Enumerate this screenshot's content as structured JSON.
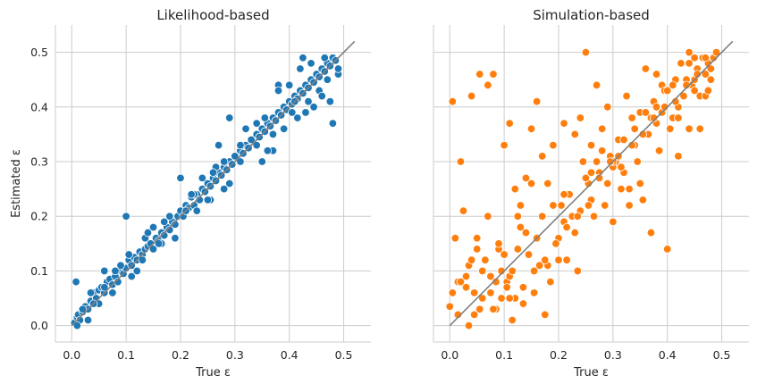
{
  "chart_data": [
    {
      "type": "scatter",
      "title": "Likelihood-based",
      "xlabel": "True ε",
      "ylabel": "Estimated ε",
      "xlim": [
        -0.03,
        0.55
      ],
      "ylim": [
        -0.03,
        0.55
      ],
      "xticks": [
        "0.0",
        "0.1",
        "0.2",
        "0.3",
        "0.4",
        "0.5"
      ],
      "yticks": [
        "0.0",
        "0.1",
        "0.2",
        "0.3",
        "0.4",
        "0.5"
      ],
      "grid": true,
      "color": "#1f77b4",
      "reference_line": {
        "x": [
          0,
          0.52
        ],
        "y": [
          0,
          0.52
        ],
        "color": "#808080"
      },
      "x": [
        0.005,
        0.008,
        0.01,
        0.012,
        0.015,
        0.02,
        0.025,
        0.03,
        0.035,
        0.04,
        0.045,
        0.05,
        0.055,
        0.06,
        0.065,
        0.07,
        0.075,
        0.08,
        0.085,
        0.09,
        0.095,
        0.1,
        0.105,
        0.11,
        0.115,
        0.12,
        0.125,
        0.13,
        0.135,
        0.14,
        0.145,
        0.15,
        0.155,
        0.16,
        0.165,
        0.17,
        0.175,
        0.18,
        0.185,
        0.19,
        0.195,
        0.2,
        0.205,
        0.21,
        0.215,
        0.22,
        0.225,
        0.23,
        0.235,
        0.24,
        0.245,
        0.25,
        0.255,
        0.26,
        0.265,
        0.27,
        0.275,
        0.28,
        0.285,
        0.29,
        0.295,
        0.3,
        0.305,
        0.31,
        0.315,
        0.32,
        0.325,
        0.33,
        0.335,
        0.34,
        0.345,
        0.35,
        0.355,
        0.36,
        0.365,
        0.37,
        0.375,
        0.38,
        0.385,
        0.39,
        0.395,
        0.4,
        0.405,
        0.41,
        0.415,
        0.42,
        0.425,
        0.43,
        0.435,
        0.44,
        0.445,
        0.45,
        0.455,
        0.46,
        0.465,
        0.47,
        0.475,
        0.48,
        0.485,
        0.49,
        0.01,
        0.02,
        0.035,
        0.05,
        0.06,
        0.075,
        0.09,
        0.1,
        0.105,
        0.12,
        0.135,
        0.15,
        0.165,
        0.18,
        0.2,
        0.21,
        0.225,
        0.24,
        0.255,
        0.265,
        0.28,
        0.29,
        0.3,
        0.31,
        0.33,
        0.34,
        0.355,
        0.37,
        0.38,
        0.39,
        0.405,
        0.415,
        0.425,
        0.435,
        0.445,
        0.455,
        0.465,
        0.475,
        0.48,
        0.42,
        0.38,
        0.36,
        0.29,
        0.27,
        0.25,
        0.19,
        0.17,
        0.14,
        0.08,
        0.04,
        0.03,
        0.06,
        0.11,
        0.13,
        0.16,
        0.22,
        0.23,
        0.26,
        0.28,
        0.31,
        0.32,
        0.34,
        0.35,
        0.37,
        0.4,
        0.41,
        0.43,
        0.44,
        0.46,
        0.47,
        0.49
      ],
      "y": [
        0.005,
        0.08,
        0.015,
        0.02,
        0.01,
        0.025,
        0.035,
        0.03,
        0.045,
        0.06,
        0.05,
        0.065,
        0.07,
        0.06,
        0.08,
        0.085,
        0.075,
        0.09,
        0.08,
        0.1,
        0.095,
        0.105,
        0.12,
        0.11,
        0.125,
        0.12,
        0.135,
        0.13,
        0.14,
        0.145,
        0.15,
        0.14,
        0.16,
        0.155,
        0.17,
        0.165,
        0.18,
        0.175,
        0.19,
        0.185,
        0.2,
        0.21,
        0.2,
        0.22,
        0.215,
        0.235,
        0.22,
        0.24,
        0.23,
        0.25,
        0.245,
        0.26,
        0.255,
        0.27,
        0.265,
        0.28,
        0.275,
        0.29,
        0.285,
        0.3,
        0.295,
        0.31,
        0.305,
        0.32,
        0.315,
        0.33,
        0.325,
        0.34,
        0.335,
        0.35,
        0.345,
        0.36,
        0.355,
        0.37,
        0.365,
        0.38,
        0.375,
        0.39,
        0.385,
        0.4,
        0.395,
        0.41,
        0.405,
        0.42,
        0.415,
        0.43,
        0.425,
        0.44,
        0.435,
        0.45,
        0.445,
        0.46,
        0.455,
        0.47,
        0.465,
        0.48,
        0.475,
        0.49,
        0.485,
        0.46,
        0.0,
        0.03,
        0.06,
        0.04,
        0.1,
        0.06,
        0.11,
        0.2,
        0.13,
        0.1,
        0.16,
        0.18,
        0.15,
        0.2,
        0.27,
        0.21,
        0.24,
        0.27,
        0.23,
        0.29,
        0.3,
        0.38,
        0.31,
        0.33,
        0.34,
        0.37,
        0.38,
        0.32,
        0.44,
        0.36,
        0.39,
        0.38,
        0.49,
        0.41,
        0.4,
        0.43,
        0.49,
        0.41,
        0.37,
        0.47,
        0.43,
        0.32,
        0.26,
        0.33,
        0.23,
        0.16,
        0.19,
        0.17,
        0.1,
        0.04,
        0.01,
        0.07,
        0.09,
        0.12,
        0.15,
        0.24,
        0.21,
        0.28,
        0.25,
        0.3,
        0.36,
        0.33,
        0.3,
        0.35,
        0.44,
        0.41,
        0.39,
        0.48,
        0.42,
        0.45,
        0.47
      ]
    },
    {
      "type": "scatter",
      "title": "Simulation-based",
      "xlabel": "True ε",
      "ylabel": "",
      "xlim": [
        -0.03,
        0.55
      ],
      "ylim": [
        -0.03,
        0.55
      ],
      "xticks": [
        "0.0",
        "0.1",
        "0.2",
        "0.3",
        "0.4",
        "0.5"
      ],
      "yticks": [],
      "grid": true,
      "color": "#ff7f0e",
      "reference_line": {
        "x": [
          0,
          0.52
        ],
        "y": [
          0,
          0.52
        ],
        "color": "#808080"
      },
      "x": [
        0.0,
        0.005,
        0.01,
        0.015,
        0.02,
        0.025,
        0.03,
        0.035,
        0.04,
        0.045,
        0.05,
        0.055,
        0.06,
        0.065,
        0.07,
        0.075,
        0.08,
        0.085,
        0.09,
        0.095,
        0.1,
        0.105,
        0.11,
        0.115,
        0.12,
        0.125,
        0.13,
        0.135,
        0.14,
        0.145,
        0.15,
        0.155,
        0.16,
        0.165,
        0.17,
        0.175,
        0.18,
        0.185,
        0.19,
        0.195,
        0.2,
        0.205,
        0.21,
        0.215,
        0.22,
        0.225,
        0.23,
        0.235,
        0.24,
        0.245,
        0.25,
        0.255,
        0.26,
        0.265,
        0.27,
        0.275,
        0.28,
        0.285,
        0.29,
        0.295,
        0.3,
        0.305,
        0.31,
        0.315,
        0.32,
        0.325,
        0.33,
        0.335,
        0.34,
        0.345,
        0.35,
        0.355,
        0.36,
        0.365,
        0.37,
        0.375,
        0.38,
        0.385,
        0.39,
        0.395,
        0.4,
        0.405,
        0.41,
        0.415,
        0.42,
        0.425,
        0.43,
        0.435,
        0.44,
        0.445,
        0.45,
        0.455,
        0.46,
        0.465,
        0.47,
        0.475,
        0.48,
        0.485,
        0.49,
        0.01,
        0.02,
        0.04,
        0.05,
        0.07,
        0.075,
        0.09,
        0.1,
        0.11,
        0.12,
        0.13,
        0.15,
        0.17,
        0.19,
        0.2,
        0.21,
        0.23,
        0.25,
        0.26,
        0.27,
        0.29,
        0.3,
        0.31,
        0.33,
        0.35,
        0.37,
        0.38,
        0.39,
        0.41,
        0.42,
        0.44,
        0.45,
        0.46,
        0.47,
        0.48,
        0.005,
        0.015,
        0.03,
        0.045,
        0.06,
        0.08,
        0.095,
        0.105,
        0.115,
        0.125,
        0.14,
        0.16,
        0.18,
        0.21,
        0.24,
        0.26,
        0.28,
        0.3,
        0.32,
        0.34,
        0.36,
        0.38,
        0.4,
        0.42,
        0.43,
        0.44,
        0.45,
        0.47,
        0.49,
        0.035,
        0.055,
        0.085,
        0.11,
        0.135,
        0.155,
        0.175,
        0.195,
        0.215,
        0.235,
        0.255,
        0.275,
        0.295,
        0.315,
        0.335,
        0.355,
        0.375,
        0.395,
        0.415,
        0.435,
        0.455,
        0.475
      ],
      "y": [
        0.035,
        0.41,
        0.16,
        0.08,
        0.3,
        0.21,
        0.07,
        0.11,
        0.42,
        0.02,
        0.16,
        0.46,
        0.05,
        0.12,
        0.44,
        0.06,
        0.46,
        0.03,
        0.14,
        0.1,
        0.33,
        0.08,
        0.37,
        0.01,
        0.25,
        0.2,
        0.18,
        0.04,
        0.27,
        0.13,
        0.36,
        0.06,
        0.41,
        0.11,
        0.31,
        0.02,
        0.26,
        0.08,
        0.33,
        0.15,
        0.16,
        0.22,
        0.37,
        0.12,
        0.24,
        0.2,
        0.35,
        0.1,
        0.38,
        0.3,
        0.5,
        0.26,
        0.33,
        0.2,
        0.44,
        0.28,
        0.36,
        0.22,
        0.4,
        0.31,
        0.19,
        0.3,
        0.34,
        0.25,
        0.28,
        0.42,
        0.22,
        0.38,
        0.36,
        0.3,
        0.39,
        0.23,
        0.47,
        0.35,
        0.17,
        0.41,
        0.46,
        0.32,
        0.44,
        0.43,
        0.14,
        0.36,
        0.38,
        0.45,
        0.31,
        0.48,
        0.42,
        0.45,
        0.5,
        0.44,
        0.49,
        0.47,
        0.42,
        0.49,
        0.46,
        0.48,
        0.45,
        0.49,
        0.5,
        0.16,
        0.08,
        0.12,
        0.14,
        0.2,
        0.09,
        0.15,
        0.13,
        0.09,
        0.05,
        0.22,
        0.26,
        0.2,
        0.22,
        0.12,
        0.24,
        0.17,
        0.27,
        0.23,
        0.3,
        0.26,
        0.29,
        0.31,
        0.25,
        0.26,
        0.38,
        0.4,
        0.39,
        0.44,
        0.38,
        0.36,
        0.43,
        0.36,
        0.42,
        0.47,
        0.06,
        0.02,
        0.09,
        0.06,
        0.1,
        0.03,
        0.05,
        0.07,
        0.1,
        0.14,
        0.17,
        0.16,
        0.11,
        0.19,
        0.21,
        0.28,
        0.32,
        0.3,
        0.34,
        0.33,
        0.39,
        0.37,
        0.43,
        0.4,
        0.42,
        0.48,
        0.45,
        0.49,
        0.5,
        0.0,
        0.03,
        0.08,
        0.05,
        0.07,
        0.1,
        0.12,
        0.15,
        0.18,
        0.2,
        0.22,
        0.27,
        0.3,
        0.29,
        0.33,
        0.35,
        0.38,
        0.4,
        0.41,
        0.44,
        0.46,
        0.43
      ]
    }
  ]
}
